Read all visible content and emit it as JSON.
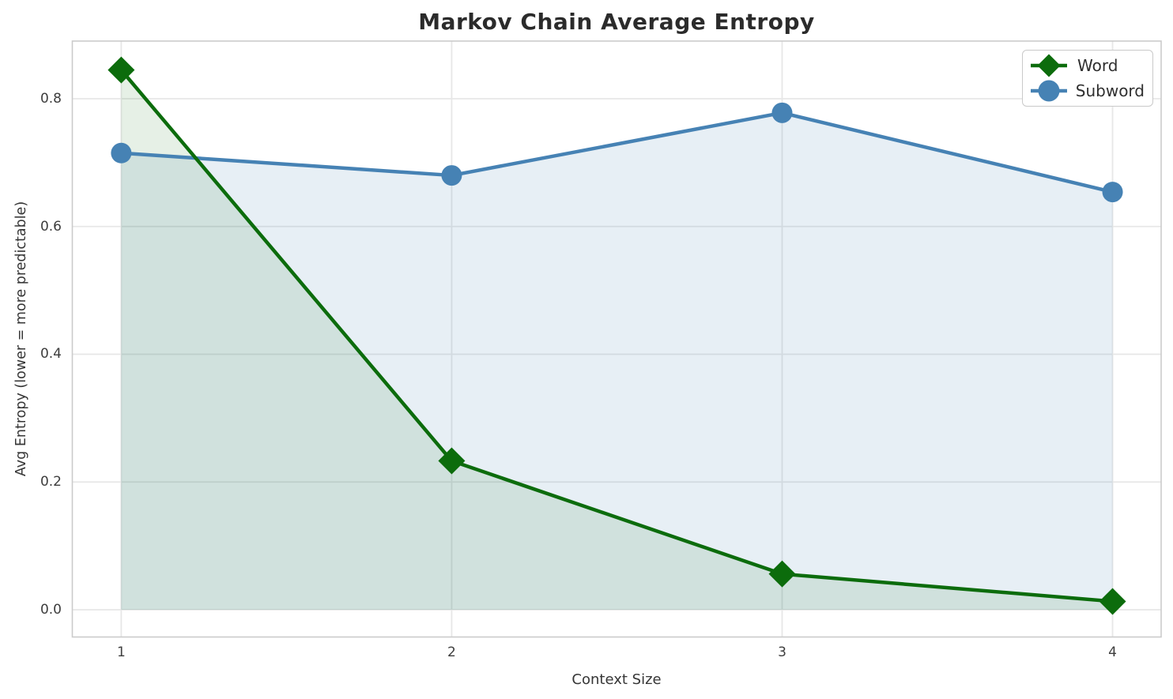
{
  "chart_data": {
    "type": "line",
    "title": "Markov Chain Average Entropy",
    "xlabel": "Context Size",
    "ylabel": "Avg Entropy (lower = more predictable)",
    "x": [
      1,
      2,
      3,
      4
    ],
    "series": [
      {
        "name": "Word",
        "color": "#0c6c0c",
        "marker": "diamond",
        "values": [
          0.845,
          0.233,
          0.056,
          0.013
        ],
        "fill_to_zero": true,
        "fill_opacity": 0.1
      },
      {
        "name": "Subword",
        "color": "#4682b4",
        "marker": "circle",
        "values": [
          0.715,
          0.68,
          0.778,
          0.654
        ],
        "fill_to_zero": true,
        "fill_opacity": 0.13
      }
    ],
    "xlim": [
      0.852,
      4.147
    ],
    "ylim": [
      -0.0427,
      0.8903
    ],
    "xticks": {
      "values": [
        1,
        2,
        3,
        4
      ],
      "labels": [
        "1",
        "2",
        "3",
        "4"
      ]
    },
    "yticks": {
      "values": [
        0.0,
        0.2,
        0.4,
        0.6,
        0.8
      ],
      "labels": [
        "0.0",
        "0.2",
        "0.4",
        "0.6",
        "0.8"
      ]
    },
    "grid": true,
    "legend": {
      "position": "upper right",
      "entries": [
        {
          "label": "Word"
        },
        {
          "label": "Subword"
        }
      ]
    }
  },
  "style": {
    "grid_color": "#e7e7e7",
    "border_color": "#cbcbcb",
    "background": "#ffffff",
    "title_color": "#2b2b2b",
    "text_color": "#3d3d3d",
    "line_width": 4.5,
    "marker_diamond_half": 17,
    "marker_circle_radius": 13
  }
}
